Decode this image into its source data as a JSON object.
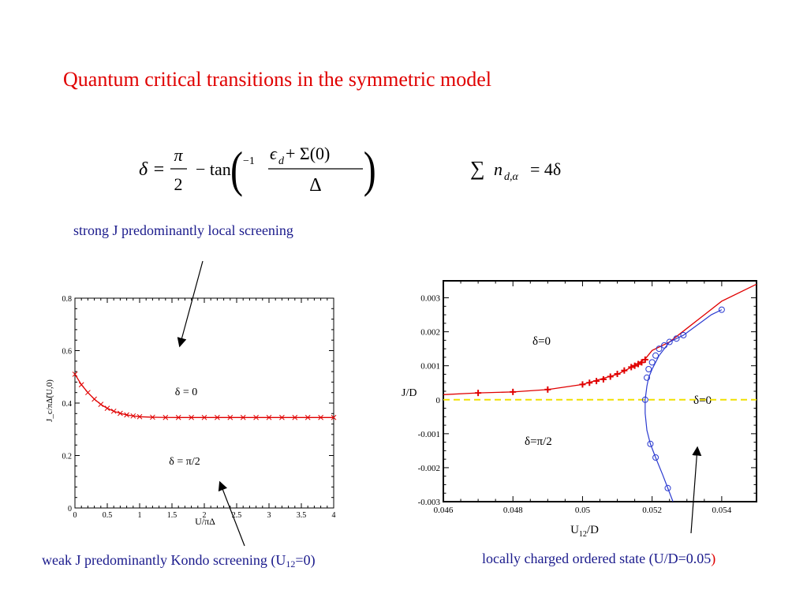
{
  "title": "Quantum critical transitions in the symmetric model",
  "equations": {
    "delta_lhs": "δ =",
    "pi": "π",
    "two": "2",
    "minus_tan": "− tan",
    "inv": "−1",
    "numerator": "ϵ",
    "numerator_sub": "d",
    "numerator_rest": " + Σ(0)",
    "denominator": "Δ",
    "sum_symbol": "∑",
    "sum_n": "n",
    "sum_sub": "d,α",
    "sum_rhs": "=  4δ"
  },
  "captions": {
    "strong": "strong J predominantly local screening",
    "weak_pre": "weak J predominantly Kondo screening (U",
    "weak_sub": "12",
    "weak_post": "=0)",
    "charged_pre": "locally charged ordered state (U/D=0.05",
    "charged_paren": ")"
  },
  "colors": {
    "title": "#e00000",
    "caption": "#1a1a8c",
    "curve_red": "#e00000",
    "curve_blue": "#2a3ad0",
    "dashed_yellow": "#f0e000"
  },
  "chart_data": [
    {
      "type": "line",
      "xlabel": "U/πΔ",
      "ylabel": "J_c/πΔ̃(U,0)",
      "xlim": [
        0,
        4
      ],
      "ylim": [
        0,
        0.8
      ],
      "xticks": [
        "0",
        "0.5",
        "1",
        "1.5",
        "2",
        "2.5",
        "3",
        "3.5",
        "4"
      ],
      "yticks": [
        "0",
        "0.2",
        "0.4",
        "0.6",
        "0.8"
      ],
      "annotations": [
        "δ = 0",
        "δ = π/2"
      ],
      "series": [
        {
          "x": [
            0,
            0.1,
            0.2,
            0.3,
            0.4,
            0.5,
            0.6,
            0.7,
            0.8,
            0.9,
            1.0,
            1.2,
            1.4,
            1.6,
            1.8,
            2.0,
            2.2,
            2.4,
            2.6,
            2.8,
            3.0,
            3.2,
            3.4,
            3.6,
            3.8,
            4.0
          ],
          "y": [
            0.51,
            0.47,
            0.44,
            0.415,
            0.395,
            0.38,
            0.369,
            0.361,
            0.355,
            0.351,
            0.348,
            0.346,
            0.345,
            0.345,
            0.345,
            0.345,
            0.345,
            0.345,
            0.345,
            0.345,
            0.345,
            0.345,
            0.345,
            0.345,
            0.345,
            0.345
          ]
        }
      ]
    },
    {
      "type": "line",
      "xlabel": "U12/D",
      "ylabel": "J/D",
      "xlim": [
        0.046,
        0.055
      ],
      "ylim": [
        -0.003,
        0.0035
      ],
      "xticks": [
        "0.046",
        "0.048",
        "0.05",
        "0.052",
        "0.054"
      ],
      "yticks": [
        "-0.003",
        "-0.002",
        "-0.001",
        "0",
        "0.001",
        "0.002",
        "0.003"
      ],
      "annotations": [
        "δ=0",
        "δ=0",
        "δ=π/2"
      ],
      "series": [
        {
          "x": [
            0.046,
            0.047,
            0.048,
            0.049,
            0.05,
            0.0505,
            0.051,
            0.0514,
            0.0518,
            0.052,
            0.0525,
            0.053,
            0.0535,
            0.054,
            0.055
          ],
          "y": [
            0.00015,
            0.0002,
            0.00023,
            0.0003,
            0.00045,
            0.0006,
            0.00075,
            0.00095,
            0.0012,
            0.00145,
            0.0017,
            0.0021,
            0.0025,
            0.0029,
            0.0034
          ],
          "markers_x": [
            0.047,
            0.048,
            0.049,
            0.05,
            0.0502,
            0.0504,
            0.0506,
            0.0508,
            0.051,
            0.0512,
            0.0514,
            0.0515,
            0.0516,
            0.0517,
            0.0518
          ],
          "markers_y": [
            0.0002,
            0.00023,
            0.0003,
            0.00045,
            0.0005,
            0.00055,
            0.0006,
            0.00068,
            0.00076,
            0.00086,
            0.00096,
            0.001,
            0.00105,
            0.0011,
            0.00118
          ]
        },
        {
          "x": [
            0.0526,
            0.05245,
            0.0523,
            0.0521,
            0.05195,
            0.05185,
            0.0518,
            0.0518,
            0.05185,
            0.0519,
            0.052,
            0.0521,
            0.0522,
            0.05235,
            0.0525,
            0.0527,
            0.0529,
            0.0533,
            0.0537,
            0.054
          ],
          "y": [
            -0.003,
            -0.0026,
            -0.0022,
            -0.0017,
            -0.0013,
            -0.0009,
            -0.0004,
            0,
            0.0004,
            0.00065,
            0.0009,
            0.0011,
            0.0013,
            0.0015,
            0.0017,
            0.0018,
            0.0019,
            0.0022,
            0.0025,
            0.00265
          ],
          "markers_x": [
            0.05245,
            0.0521,
            0.05195,
            0.0518,
            0.05185,
            0.0519,
            0.052,
            0.0521,
            0.0522,
            0.05235,
            0.0525,
            0.0527,
            0.0529,
            0.054
          ],
          "markers_y": [
            -0.0026,
            -0.0017,
            -0.0013,
            0,
            0.00065,
            0.0009,
            0.0011,
            0.0013,
            0.0015,
            0.0016,
            0.0017,
            0.0018,
            0.0019,
            0.00265
          ]
        },
        {
          "x": [
            0.046,
            0.055
          ],
          "y": [
            0,
            0
          ],
          "style": "dashed"
        }
      ]
    }
  ]
}
